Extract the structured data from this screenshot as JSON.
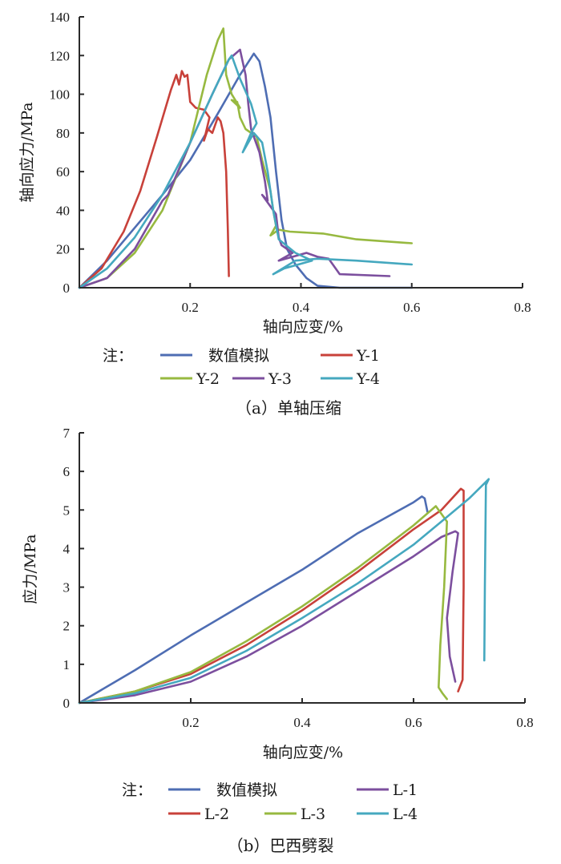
{
  "chart_data": [
    {
      "id": "a",
      "type": "line",
      "caption": "（a）单轴压缩",
      "title": "",
      "xlabel": "轴向应变/%",
      "ylabel": "轴向应力/MPa",
      "xlim": [
        0,
        0.8
      ],
      "ylim": [
        0,
        140
      ],
      "xticks": [
        0.2,
        0.4,
        0.6,
        0.8
      ],
      "xtick_labels": [
        "0.2",
        "0.4",
        "0.6",
        "0.8"
      ],
      "yticks": [
        0,
        20,
        40,
        60,
        80,
        100,
        120,
        140
      ],
      "ytick_labels": [
        "0",
        "20",
        "40",
        "60",
        "80",
        "100",
        "120",
        "140"
      ],
      "grid": false,
      "legend_prefix": "注：",
      "legend_placement": "bottom",
      "series": [
        {
          "name": "数值模拟",
          "color": "#4e6db3",
          "x": [
            0,
            0.05,
            0.1,
            0.15,
            0.2,
            0.25,
            0.29,
            0.315,
            0.325,
            0.335,
            0.345,
            0.355,
            0.365,
            0.375,
            0.39,
            0.41,
            0.43,
            0.47,
            0.6
          ],
          "y": [
            0,
            14,
            31,
            48,
            66,
            90,
            110,
            121,
            117,
            104,
            88,
            60,
            35,
            20,
            12,
            5,
            1,
            0,
            0
          ]
        },
        {
          "name": "Y-1",
          "color": "#c8413a",
          "x": [
            0,
            0.04,
            0.08,
            0.11,
            0.14,
            0.165,
            0.175,
            0.18,
            0.185,
            0.19,
            0.195,
            0.2,
            0.21,
            0.225,
            0.235,
            0.225,
            0.232,
            0.24,
            0.25,
            0.255,
            0.26,
            0.265,
            0.268,
            0.27
          ],
          "y": [
            0,
            10,
            29,
            50,
            78,
            102,
            110,
            105,
            112,
            109,
            110,
            96,
            93,
            92,
            88,
            76,
            82,
            80,
            88,
            86,
            80,
            60,
            30,
            6
          ]
        },
        {
          "name": "Y-2",
          "color": "#97b940",
          "x": [
            0,
            0.05,
            0.1,
            0.15,
            0.2,
            0.23,
            0.25,
            0.26,
            0.265,
            0.275,
            0.29,
            0.275,
            0.285,
            0.29,
            0.3,
            0.32,
            0.33,
            0.345,
            0.35,
            0.355,
            0.345,
            0.36,
            0.38,
            0.44,
            0.5,
            0.6
          ],
          "y": [
            0,
            5,
            18,
            40,
            75,
            110,
            128,
            134,
            110,
            100,
            93,
            97,
            96,
            88,
            82,
            78,
            66,
            50,
            40,
            32,
            27,
            30,
            29,
            28,
            25,
            23
          ]
        },
        {
          "name": "Y-3",
          "color": "#7c4f9e",
          "x": [
            0,
            0.05,
            0.1,
            0.15,
            0.16,
            0.2,
            0.24,
            0.27,
            0.29,
            0.3,
            0.305,
            0.31,
            0.325,
            0.335,
            0.34,
            0.33,
            0.345,
            0.355,
            0.36,
            0.365,
            0.385,
            0.36,
            0.41,
            0.43,
            0.45,
            0.47,
            0.56
          ],
          "y": [
            0,
            5,
            20,
            45,
            48,
            75,
            100,
            118,
            123,
            110,
            95,
            82,
            70,
            55,
            45,
            48,
            42,
            38,
            26,
            22,
            18,
            14,
            18,
            16,
            15,
            7,
            6
          ]
        },
        {
          "name": "Y-4",
          "color": "#45a8bf",
          "x": [
            0,
            0.05,
            0.1,
            0.15,
            0.2,
            0.24,
            0.27,
            0.275,
            0.29,
            0.31,
            0.32,
            0.31,
            0.295,
            0.315,
            0.33,
            0.34,
            0.35,
            0.36,
            0.39,
            0.42,
            0.37,
            0.35,
            0.39,
            0.43,
            0.5,
            0.6
          ],
          "y": [
            0,
            10,
            26,
            48,
            75,
            100,
            118,
            120,
            108,
            95,
            85,
            80,
            70,
            80,
            75,
            60,
            40,
            25,
            18,
            14,
            10,
            7,
            14,
            15,
            14,
            12
          ]
        }
      ]
    },
    {
      "id": "b",
      "type": "line",
      "caption": "（b）巴西劈裂",
      "title": "",
      "xlabel": "轴向应变/%",
      "ylabel": "应力/MPa",
      "xlim": [
        0,
        0.8
      ],
      "ylim": [
        0,
        7
      ],
      "xticks": [
        0.2,
        0.4,
        0.6,
        0.8
      ],
      "xtick_labels": [
        "0.2",
        "0.4",
        "0.6",
        "0.8"
      ],
      "yticks": [
        0,
        1,
        2,
        3,
        4,
        5,
        6,
        7
      ],
      "ytick_labels": [
        "0",
        "1",
        "2",
        "3",
        "4",
        "5",
        "6",
        "7"
      ],
      "grid": false,
      "legend_prefix": "注：",
      "legend_placement": "bottom",
      "series": [
        {
          "name": "数值模拟",
          "color": "#4e6db3",
          "x": [
            0,
            0.1,
            0.2,
            0.3,
            0.4,
            0.5,
            0.6,
            0.615,
            0.62,
            0.625
          ],
          "y": [
            0,
            0.85,
            1.75,
            2.6,
            3.45,
            4.4,
            5.2,
            5.35,
            5.3,
            4.95
          ]
        },
        {
          "name": "L-1",
          "color": "#7c4f9e",
          "x": [
            0,
            0.1,
            0.2,
            0.3,
            0.4,
            0.5,
            0.6,
            0.65,
            0.675,
            0.68,
            0.67,
            0.66,
            0.665,
            0.675
          ],
          "y": [
            0,
            0.2,
            0.55,
            1.2,
            2.0,
            2.9,
            3.8,
            4.3,
            4.45,
            4.4,
            3.4,
            2.2,
            1.2,
            0.55
          ]
        },
        {
          "name": "L-2",
          "color": "#c8413a",
          "x": [
            0,
            0.1,
            0.2,
            0.3,
            0.4,
            0.5,
            0.6,
            0.65,
            0.685,
            0.69,
            0.69,
            0.688,
            0.68
          ],
          "y": [
            0,
            0.3,
            0.75,
            1.5,
            2.4,
            3.4,
            4.5,
            5.0,
            5.55,
            5.5,
            3.0,
            0.6,
            0.3
          ]
        },
        {
          "name": "L-3",
          "color": "#97b940",
          "x": [
            0,
            0.1,
            0.2,
            0.3,
            0.4,
            0.5,
            0.6,
            0.64,
            0.66,
            0.655,
            0.648,
            0.645,
            0.652,
            0.66
          ],
          "y": [
            0,
            0.3,
            0.8,
            1.6,
            2.5,
            3.5,
            4.6,
            5.1,
            4.7,
            3.0,
            1.5,
            0.4,
            0.25,
            0.1
          ]
        },
        {
          "name": "L-4",
          "color": "#45a8bf",
          "x": [
            0,
            0.1,
            0.2,
            0.3,
            0.4,
            0.5,
            0.6,
            0.65,
            0.7,
            0.735,
            0.73,
            0.728,
            0.727
          ],
          "y": [
            0,
            0.25,
            0.65,
            1.35,
            2.2,
            3.1,
            4.1,
            4.7,
            5.3,
            5.8,
            5.65,
            3.0,
            1.1
          ]
        }
      ]
    }
  ],
  "legends": {
    "a": {
      "prefix": "注：",
      "rows": [
        [
          {
            "label": "数值模拟",
            "color": "#4e6db3"
          },
          {
            "label": "Y-1",
            "color": "#c8413a"
          }
        ],
        [
          {
            "label": "Y-2",
            "color": "#97b940"
          },
          {
            "label": "Y-3",
            "color": "#7c4f9e"
          },
          {
            "label": "Y-4",
            "color": "#45a8bf"
          }
        ]
      ]
    },
    "b": {
      "prefix": "注：",
      "rows": [
        [
          {
            "label": "数值模拟",
            "color": "#4e6db3"
          },
          {
            "label": "L-1",
            "color": "#7c4f9e"
          }
        ],
        [
          {
            "label": "L-2",
            "color": "#c8413a"
          },
          {
            "label": "L-3",
            "color": "#97b940"
          },
          {
            "label": "L-4",
            "color": "#45a8bf"
          }
        ]
      ]
    }
  }
}
